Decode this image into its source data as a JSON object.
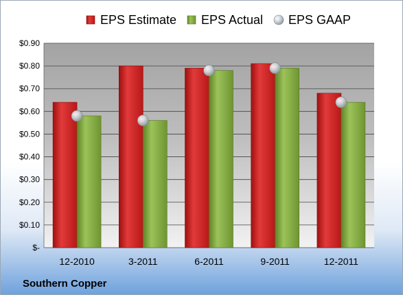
{
  "company": "Southern Copper",
  "chart_data": {
    "type": "bar",
    "categories": [
      "12-2010",
      "3-2011",
      "6-2011",
      "9-2011",
      "12-2011"
    ],
    "series": [
      {
        "name": "EPS Estimate",
        "kind": "bar",
        "color": "#d42a2a",
        "values": [
          0.64,
          0.8,
          0.79,
          0.81,
          0.68
        ]
      },
      {
        "name": "EPS Actual",
        "kind": "bar",
        "color": "#8ab04a",
        "values": [
          0.58,
          0.56,
          0.78,
          0.79,
          0.64
        ]
      },
      {
        "name": "EPS GAAP",
        "kind": "marker",
        "color": "#b9c2cc",
        "values": [
          0.58,
          0.56,
          0.78,
          0.79,
          0.64
        ]
      }
    ],
    "y_ticks": [
      "$-",
      "$0.10",
      "$0.20",
      "$0.30",
      "$0.40",
      "$0.50",
      "$0.60",
      "$0.70",
      "$0.80",
      "$0.90"
    ],
    "ylim": [
      0,
      0.9
    ],
    "grid": true,
    "legend_position": "top"
  }
}
